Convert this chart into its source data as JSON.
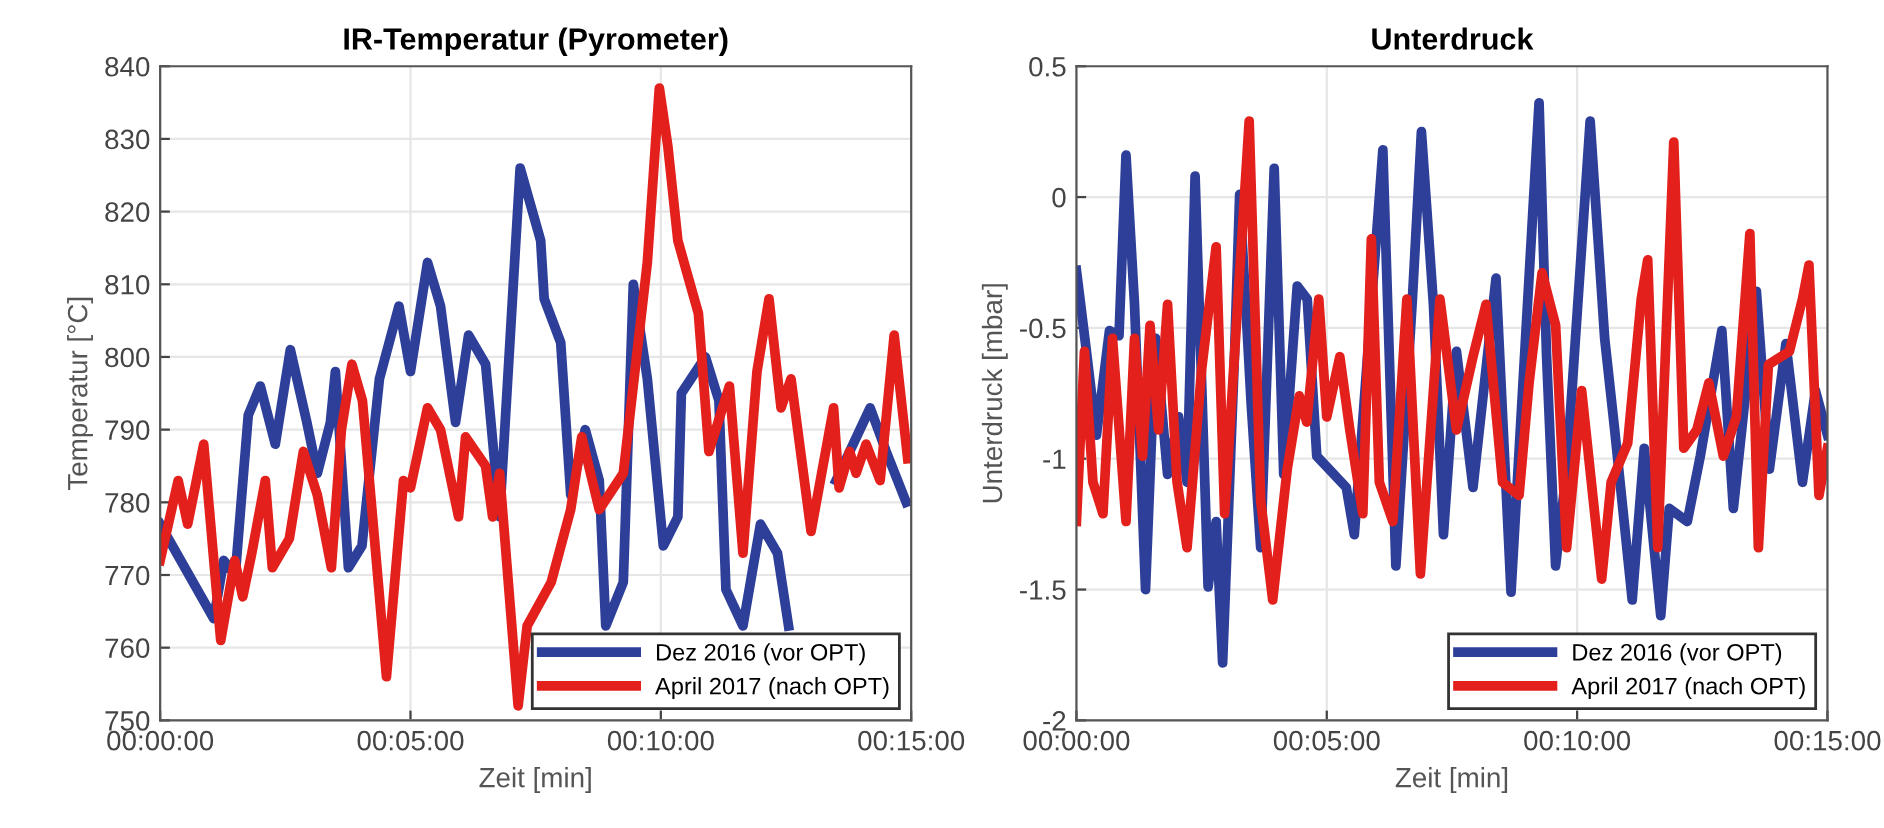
{
  "chart_data": [
    {
      "type": "line",
      "title": "IR-Temperatur (Pyrometer)",
      "xlabel": "Zeit [min]",
      "ylabel": "Temperatur [°C]",
      "xlim": [
        0,
        15
      ],
      "ylim": [
        750,
        840
      ],
      "xticks": [
        {
          "value": 0,
          "label": "00:00:00"
        },
        {
          "value": 5,
          "label": "00:05:00"
        },
        {
          "value": 10,
          "label": "00:10:00"
        },
        {
          "value": 15,
          "label": "00:15:00"
        }
      ],
      "yticks": [
        750,
        760,
        770,
        780,
        790,
        800,
        810,
        820,
        830,
        840
      ],
      "grid": true,
      "legend": "bottom right",
      "line_style": "solid",
      "marker": "none",
      "series": [
        {
          "name": "Dez 2016 (vor OPT)",
          "color": "#2e3f99",
          "x": [
            0,
            1.07,
            1.27,
            1.5,
            1.76,
            2.0,
            2.3,
            2.6,
            2.93,
            3.14,
            3.4,
            3.5,
            3.76,
            4.03,
            4.38,
            4.77,
            5.0,
            5.34,
            5.6,
            5.9,
            6.16,
            6.5,
            6.78,
            7.19,
            7.6,
            7.67,
            8.0,
            8.2,
            8.49,
            8.77,
            8.9,
            9.25,
            9.45,
            9.73,
            10.05,
            10.34,
            10.41,
            10.89,
            11.16,
            11.3,
            11.64,
            11.99,
            12.33,
            12.55,
            13.0,
            13.5,
            14.18,
            14.5,
            14.9
          ],
          "values": [
            777,
            764,
            772,
            770,
            792,
            796,
            788,
            801,
            791,
            784,
            791,
            798,
            771,
            774,
            797,
            807,
            798,
            813,
            807,
            791,
            803,
            799,
            778,
            826,
            816,
            808,
            802,
            781,
            790,
            783,
            763,
            769,
            810,
            797,
            774,
            778,
            795,
            800,
            794,
            768,
            763,
            777,
            773,
            763,
            null,
            783,
            793,
            787,
            780
          ]
        },
        {
          "name": "April 2017 (nach OPT)",
          "color": "#e3201b",
          "x": [
            0,
            0.36,
            0.55,
            0.87,
            1.21,
            1.49,
            1.65,
            1.83,
            2.1,
            2.24,
            2.58,
            2.86,
            3.14,
            3.42,
            3.62,
            3.83,
            4.04,
            4.52,
            4.86,
            5.0,
            5.34,
            5.6,
            5.96,
            6.1,
            6.5,
            6.64,
            6.78,
            7.15,
            7.33,
            7.81,
            8.2,
            8.42,
            8.77,
            9.25,
            9.73,
            9.97,
            10.14,
            10.34,
            10.75,
            10.96,
            11.37,
            11.64,
            11.92,
            12.16,
            12.4,
            12.6,
            13.0,
            13.45,
            13.56,
            13.77,
            13.9,
            14.1,
            14.38,
            14.66,
            14.93
          ],
          "values": [
            772,
            783,
            777,
            788,
            761,
            772,
            767,
            773,
            783,
            771,
            775,
            787,
            781,
            771,
            790,
            799,
            794,
            756,
            783,
            782,
            793,
            790,
            778,
            789,
            785,
            778,
            784,
            752,
            763,
            769,
            779,
            789,
            779,
            784,
            813,
            837,
            829,
            816,
            806,
            787,
            796,
            773,
            798,
            808,
            793,
            797,
            776,
            793,
            782,
            787,
            784,
            788,
            783,
            803,
            786
          ]
        }
      ]
    },
    {
      "type": "line",
      "title": "Unterdruck",
      "xlabel": "Zeit [min]",
      "ylabel": "Unterdruck [mbar]",
      "xlim": [
        0,
        15
      ],
      "ylim": [
        -2,
        0.5
      ],
      "xticks": [
        {
          "value": 0,
          "label": "00:00:00"
        },
        {
          "value": 5,
          "label": "00:05:00"
        },
        {
          "value": 10,
          "label": "00:10:00"
        },
        {
          "value": 15,
          "label": "00:15:00"
        }
      ],
      "yticks": [
        -2,
        -1.5,
        -1,
        -0.5,
        0,
        0.5
      ],
      "grid": true,
      "legend": "bottom right",
      "line_style": "solid",
      "marker": "none",
      "series": [
        {
          "name": "Dez 2016 (vor OPT)",
          "color": "#2e3f99",
          "x": [
            0,
            0.2,
            0.4,
            0.66,
            0.85,
            0.99,
            1.16,
            1.38,
            1.58,
            1.82,
            2.04,
            2.21,
            2.37,
            2.63,
            2.79,
            2.92,
            3.16,
            3.26,
            3.49,
            3.68,
            3.95,
            4.14,
            4.41,
            4.61,
            4.8,
            5.39,
            5.55,
            6.12,
            6.38,
            6.71,
            6.89,
            7.13,
            7.33,
            7.59,
            7.92,
            8.38,
            8.68,
            8.91,
            9.24,
            9.39,
            9.57,
            9.79,
            10.26,
            10.55,
            10.75,
            11.1,
            11.34,
            11.67,
            11.84,
            12.2,
            12.46,
            12.89,
            13.12,
            13.58,
            13.84,
            14.17,
            14.5,
            14.76,
            15
          ],
          "values": [
            -0.28,
            -0.59,
            -0.91,
            -0.51,
            -0.53,
            0.16,
            -0.41,
            -1.5,
            -0.54,
            -1.06,
            -0.84,
            -1.09,
            0.08,
            -1.49,
            -1.24,
            -1.78,
            -0.59,
            0.01,
            -0.79,
            -1.34,
            0.11,
            -1.06,
            -0.34,
            -0.39,
            -0.99,
            -1.11,
            -1.29,
            0.18,
            -1.41,
            -0.39,
            0.25,
            -0.41,
            -1.29,
            -0.59,
            -1.11,
            -0.31,
            -1.51,
            -0.74,
            0.36,
            -0.61,
            -1.41,
            -1.04,
            0.29,
            -0.54,
            -0.89,
            -1.54,
            -0.96,
            -1.6,
            -1.19,
            -1.24,
            -0.99,
            -0.51,
            -1.19,
            -0.36,
            -1.04,
            -0.56,
            -1.09,
            -0.74,
            -0.91
          ]
        },
        {
          "name": "April 2017 (nach OPT)",
          "color": "#e3201b",
          "x": [
            0,
            0.16,
            0.33,
            0.53,
            0.72,
            0.99,
            1.16,
            1.32,
            1.47,
            1.64,
            1.82,
            2.01,
            2.21,
            2.5,
            2.79,
            2.96,
            3.22,
            3.45,
            3.68,
            3.92,
            4.21,
            4.45,
            4.6,
            4.84,
            5.0,
            5.26,
            5.46,
            5.72,
            5.89,
            6.05,
            6.32,
            6.6,
            6.87,
            7.26,
            7.59,
            7.92,
            8.18,
            8.51,
            8.84,
            9.04,
            9.3,
            9.57,
            9.79,
            10.09,
            10.49,
            10.68,
            11.01,
            11.28,
            11.41,
            11.61,
            11.93,
            12.13,
            12.39,
            12.63,
            12.92,
            13.18,
            13.45,
            13.62,
            13.82,
            14.24,
            14.5,
            14.63,
            14.83,
            15
          ],
          "values": [
            -1.24,
            -0.59,
            -1.09,
            -1.21,
            -0.54,
            -1.24,
            -0.54,
            -0.99,
            -0.49,
            -0.89,
            -0.41,
            -1.09,
            -1.34,
            -0.66,
            -0.19,
            -1.21,
            -0.41,
            0.29,
            -1.16,
            -1.54,
            -1.04,
            -0.76,
            -0.86,
            -0.39,
            -0.84,
            -0.61,
            -0.89,
            -1.21,
            -0.16,
            -1.09,
            -1.24,
            -0.39,
            -1.44,
            -0.39,
            -0.89,
            -0.61,
            -0.41,
            -1.09,
            -1.14,
            -0.71,
            -0.29,
            -0.49,
            -1.34,
            -0.74,
            -1.46,
            -1.09,
            -0.94,
            -0.39,
            -0.24,
            -1.34,
            0.21,
            -0.96,
            -0.89,
            -0.71,
            -0.99,
            -0.84,
            -0.14,
            -1.34,
            -0.64,
            -0.59,
            -0.39,
            -0.26,
            -1.14,
            -0.96
          ]
        }
      ]
    }
  ]
}
